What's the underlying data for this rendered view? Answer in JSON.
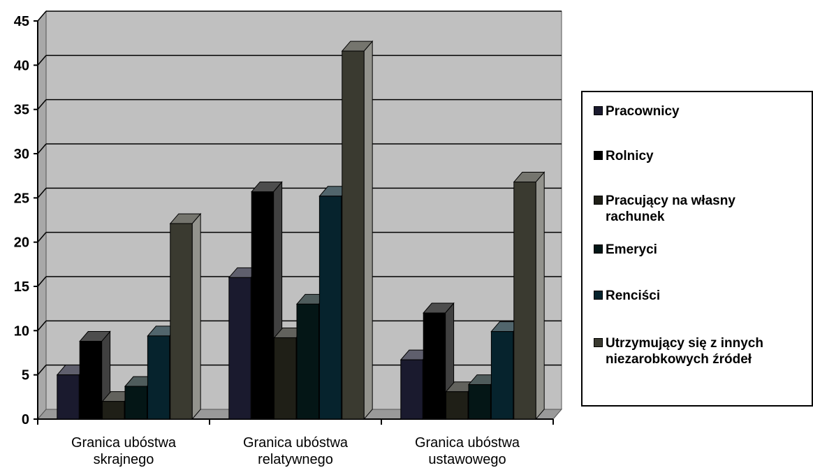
{
  "chart_data": {
    "type": "bar",
    "title": "",
    "xlabel": "",
    "ylabel": "",
    "ylim": [
      0,
      45
    ],
    "yticks": [
      0,
      5,
      10,
      15,
      20,
      25,
      30,
      35,
      40,
      45
    ],
    "grid": true,
    "legend_position": "right",
    "categories": [
      "Granica ubóstwa skrajnego",
      "Granica ubóstwa relatywnego",
      "Granica ubóstwa ustawowego"
    ],
    "category_label_lines": [
      [
        "Granica ubóstwa",
        "skrajnego"
      ],
      [
        "Granica ubóstwa",
        "relatywnego"
      ],
      [
        "Granica ubóstwa",
        "ustawowego"
      ]
    ],
    "series": [
      {
        "name": "Pracownicy",
        "values": [
          5,
          16,
          6.7
        ],
        "color": "#1a1a2e"
      },
      {
        "name": "Rolnicy",
        "values": [
          8.8,
          25.7,
          12
        ],
        "color": "#000000"
      },
      {
        "name": "Pracujący na własny rachunek",
        "values": [
          2,
          9.2,
          3.1
        ],
        "color": "#1f1f17"
      },
      {
        "name": "Emeryci",
        "values": [
          3.7,
          13,
          3.9
        ],
        "color": "#041616"
      },
      {
        "name": "Renciści",
        "values": [
          9.4,
          25.2,
          9.9
        ],
        "color": "#06232d"
      },
      {
        "name": "Utrzymujący się z innych niezarobkowych źródeł",
        "values": [
          22.1,
          41.6,
          26.8
        ],
        "color": "#3a3a30"
      }
    ],
    "legend_label_lines": [
      [
        "Pracownicy"
      ],
      [
        "Rolnicy"
      ],
      [
        "Pracujący na własny",
        "rachunek"
      ],
      [
        "Emeryci"
      ],
      [
        "Renciści"
      ],
      [
        "Utrzymujący się z innych",
        "niezarobkowych źródeł"
      ]
    ],
    "colors": {
      "plot_background": "#c0c0c0",
      "floor": "#9a9a9a",
      "gridline": "#000000"
    }
  }
}
